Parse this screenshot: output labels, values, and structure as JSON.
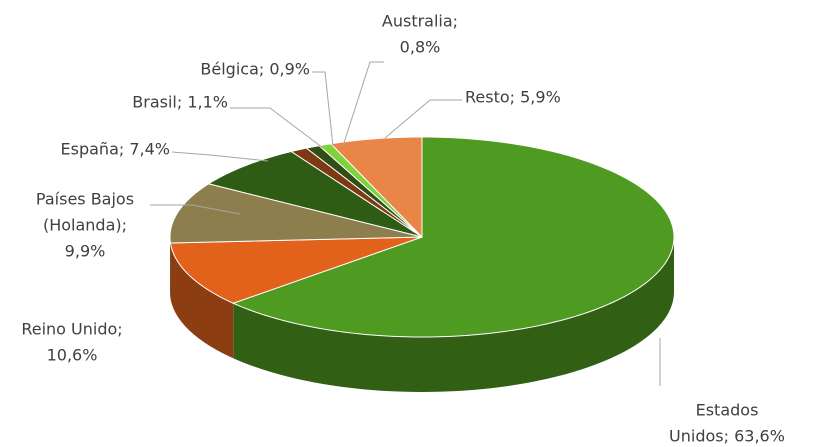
{
  "chart_data": {
    "type": "pie",
    "three_d": true,
    "values": [
      63.6,
      10.6,
      9.9,
      7.4,
      1.1,
      0.9,
      0.8,
      5.9
    ],
    "value_labels": [
      [
        "Estados",
        "Unidos; 63,6%"
      ],
      [
        "Reino Unido;",
        "10,6%"
      ],
      [
        "Países Bajos",
        "(Holanda);",
        "9,9%"
      ],
      [
        "España; 7,4%"
      ],
      [
        "Brasil; 1,1%"
      ],
      [
        "Bélgica; 0,9%"
      ],
      [
        "Australia;",
        "0,8%"
      ],
      [
        "Resto; 5,9%"
      ]
    ],
    "colors": [
      "#4f9a20",
      "#e2621b",
      "#8c7f4d",
      "#2e5c15",
      "#7d3a12",
      "#2f4f16",
      "#7fd23c",
      "#ea8548"
    ]
  }
}
